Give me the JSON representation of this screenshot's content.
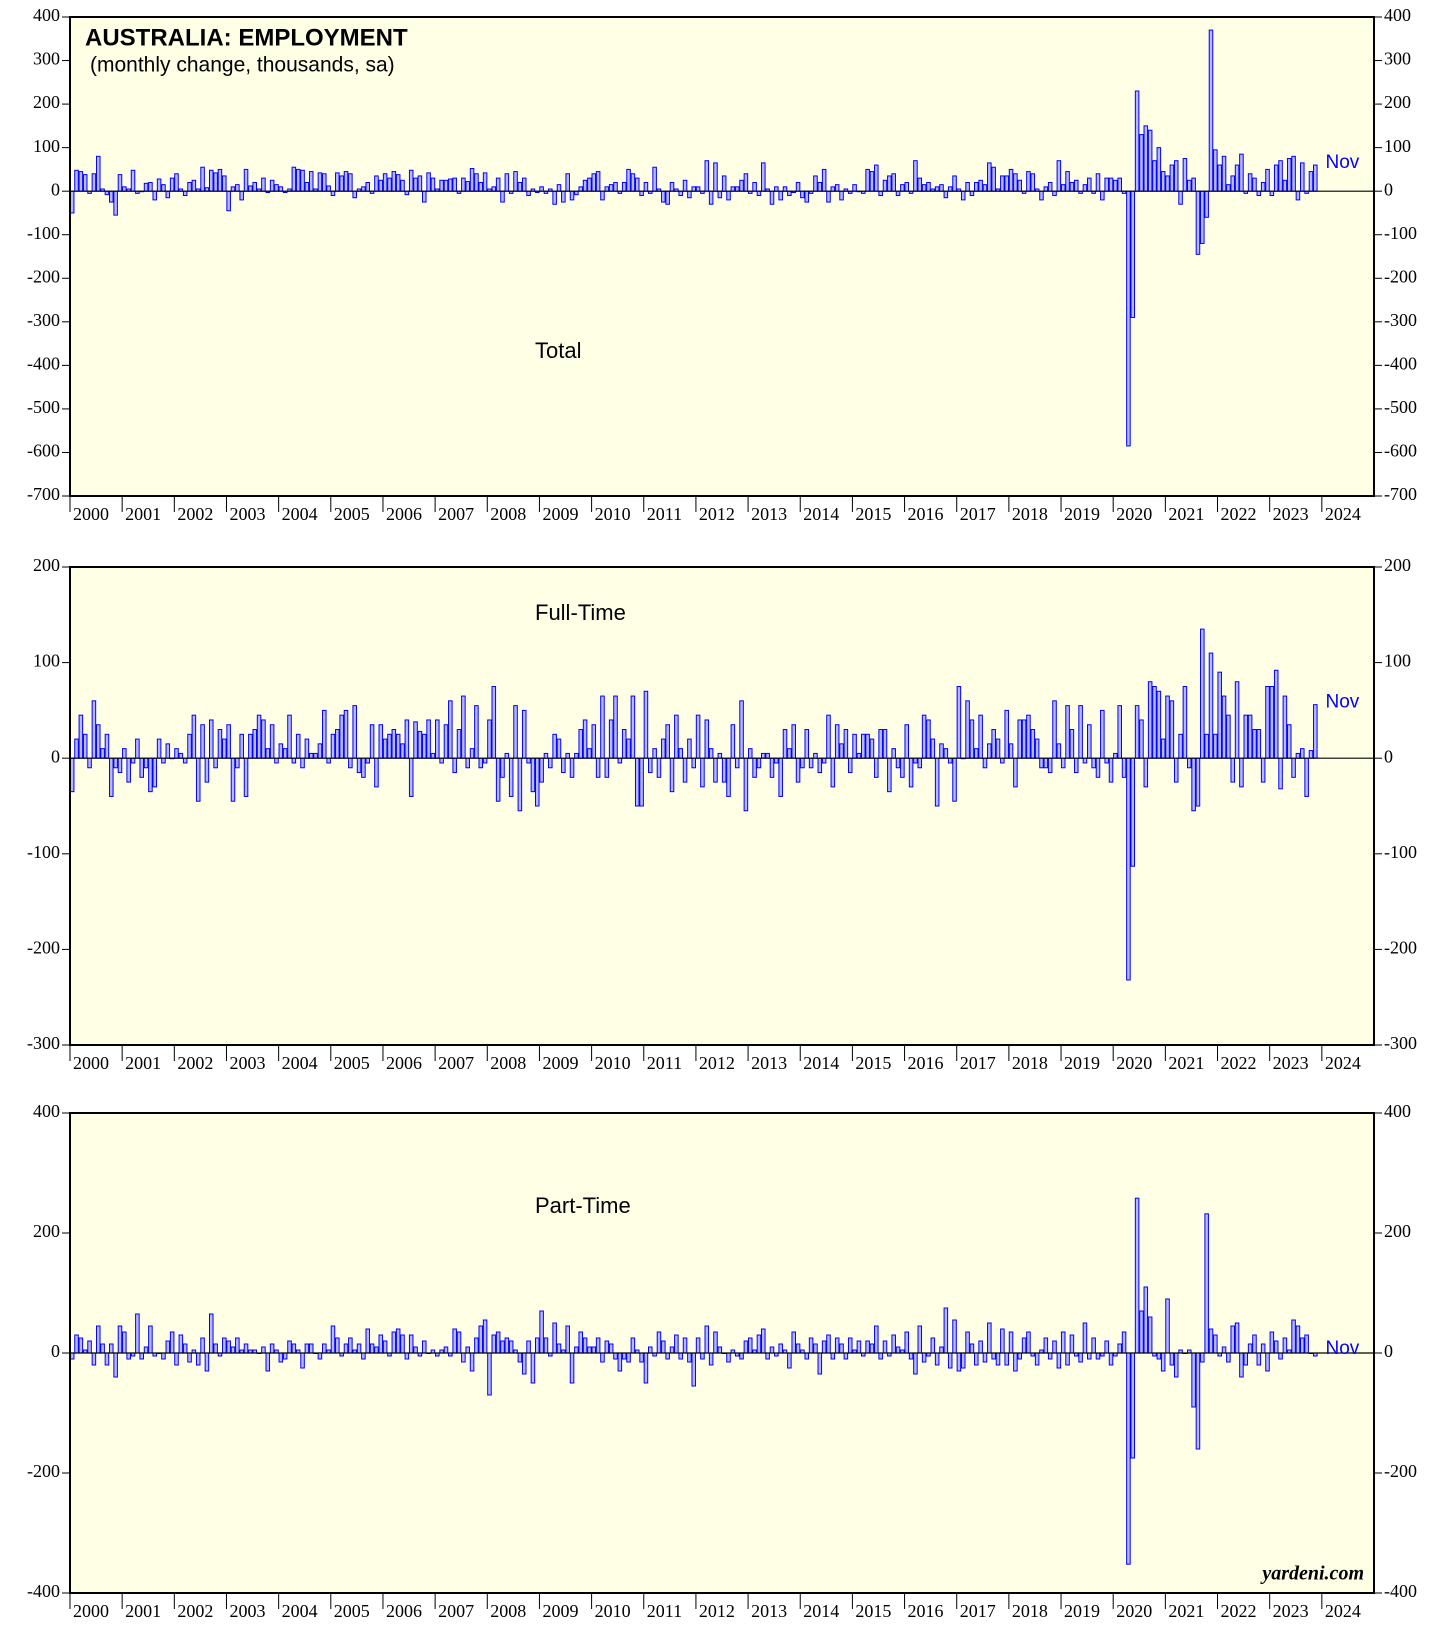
{
  "chart_data": [
    {
      "type": "bar",
      "title": "AUSTRALIA: EMPLOYMENT",
      "subtitle": "(monthly change, thousands, sa)",
      "label": "Total",
      "annotation": "Nov",
      "color": "#b8b8ff",
      "edge_color": "#0000ff",
      "background": "#ffffe6",
      "xlim": [
        2000,
        2025
      ],
      "xticks": [
        2000,
        2001,
        2002,
        2003,
        2004,
        2005,
        2006,
        2007,
        2008,
        2009,
        2010,
        2011,
        2012,
        2013,
        2014,
        2015,
        2016,
        2017,
        2018,
        2019,
        2020,
        2021,
        2022,
        2023,
        2024
      ],
      "ylim": [
        -700,
        400
      ],
      "yticks": [
        -700,
        -600,
        -500,
        -400,
        -300,
        -200,
        -100,
        0,
        100,
        200,
        300,
        400
      ],
      "values": [
        -50,
        48,
        45,
        38,
        -5,
        40,
        80,
        5,
        -8,
        -25,
        -55,
        38,
        10,
        5,
        48,
        -5,
        0,
        18,
        20,
        -20,
        28,
        15,
        -15,
        30,
        40,
        5,
        -10,
        20,
        25,
        5,
        55,
        8,
        48,
        42,
        50,
        35,
        -45,
        10,
        15,
        -20,
        50,
        12,
        20,
        5,
        30,
        -3,
        25,
        15,
        10,
        -3,
        5,
        55,
        50,
        48,
        20,
        45,
        5,
        42,
        40,
        12,
        -10,
        42,
        35,
        45,
        40,
        -15,
        5,
        10,
        20,
        -5,
        35,
        25,
        40,
        30,
        45,
        38,
        25,
        -8,
        48,
        30,
        35,
        -25,
        42,
        30,
        5,
        25,
        25,
        28,
        30,
        -5,
        30,
        22,
        52,
        40,
        20,
        42,
        5,
        10,
        30,
        -25,
        40,
        -5,
        45,
        20,
        30,
        -10,
        5,
        -3,
        10,
        -5,
        5,
        -30,
        15,
        -25,
        40,
        -20,
        -8,
        10,
        25,
        30,
        40,
        45,
        -20,
        10,
        15,
        20,
        -5,
        20,
        50,
        40,
        30,
        -10,
        20,
        -5,
        55,
        5,
        -25,
        -30,
        20,
        5,
        -10,
        25,
        -15,
        10,
        10,
        -5,
        70,
        -30,
        65,
        -15,
        35,
        -20,
        10,
        10,
        25,
        40,
        -5,
        20,
        -10,
        65,
        5,
        -30,
        10,
        -20,
        10,
        -10,
        -3,
        20,
        -15,
        -25,
        -5,
        35,
        20,
        50,
        -25,
        10,
        15,
        -20,
        5,
        -5,
        15,
        0,
        -5,
        50,
        45,
        60,
        -10,
        25,
        35,
        40,
        -10,
        15,
        20,
        -5,
        70,
        30,
        15,
        20,
        5,
        10,
        15,
        -15,
        10,
        35,
        5,
        -20,
        20,
        -10,
        20,
        25,
        15,
        65,
        55,
        5,
        35,
        35,
        50,
        40,
        25,
        -5,
        45,
        40,
        5,
        -20,
        10,
        20,
        -10,
        70,
        15,
        45,
        20,
        25,
        -5,
        15,
        30,
        -5,
        40,
        -20,
        30,
        30,
        25,
        30,
        -5,
        -585,
        -290,
        230,
        130,
        150,
        140,
        70,
        100,
        45,
        35,
        60,
        70,
        -30,
        75,
        25,
        30,
        -145,
        -120,
        -60,
        370,
        95,
        60,
        80,
        15,
        35,
        60,
        85,
        -5,
        40,
        30,
        -10,
        20,
        50,
        -10,
        60,
        70,
        25,
        75,
        80,
        -20,
        65,
        -5,
        45,
        60
      ]
    },
    {
      "type": "bar",
      "label": "Full-Time",
      "annotation": "Nov",
      "color": "#b8b8ff",
      "edge_color": "#0000ff",
      "background": "#ffffe6",
      "xlim": [
        2000,
        2025
      ],
      "xticks": [
        2000,
        2001,
        2002,
        2003,
        2004,
        2005,
        2006,
        2007,
        2008,
        2009,
        2010,
        2011,
        2012,
        2013,
        2014,
        2015,
        2016,
        2017,
        2018,
        2019,
        2020,
        2021,
        2022,
        2023,
        2024
      ],
      "ylim": [
        -300,
        200
      ],
      "yticks": [
        -300,
        -200,
        -100,
        0,
        100,
        200
      ],
      "values": [
        -35,
        20,
        45,
        25,
        -10,
        60,
        35,
        10,
        25,
        -40,
        -10,
        -15,
        10,
        -25,
        -5,
        20,
        -20,
        -10,
        -35,
        -30,
        20,
        -5,
        15,
        0,
        10,
        5,
        -5,
        25,
        45,
        -45,
        35,
        -25,
        40,
        -10,
        30,
        20,
        35,
        -45,
        -10,
        25,
        -40,
        25,
        30,
        45,
        40,
        10,
        35,
        -5,
        15,
        10,
        45,
        -5,
        25,
        -10,
        20,
        5,
        5,
        15,
        50,
        -5,
        25,
        30,
        45,
        50,
        -10,
        55,
        -15,
        -20,
        -5,
        35,
        -30,
        35,
        20,
        25,
        30,
        25,
        15,
        40,
        -40,
        38,
        28,
        25,
        40,
        5,
        40,
        -5,
        35,
        60,
        -15,
        30,
        65,
        -10,
        10,
        55,
        -10,
        -5,
        40,
        75,
        -45,
        -20,
        5,
        -40,
        55,
        -55,
        50,
        -5,
        -35,
        -50,
        -25,
        5,
        -10,
        25,
        20,
        -15,
        5,
        -20,
        5,
        30,
        40,
        10,
        35,
        -20,
        65,
        -20,
        40,
        65,
        -5,
        30,
        20,
        65,
        -50,
        -50,
        70,
        -15,
        10,
        -20,
        20,
        35,
        -35,
        45,
        10,
        -25,
        20,
        -10,
        45,
        -30,
        40,
        10,
        -25,
        5,
        -25,
        -40,
        35,
        -10,
        60,
        -55,
        10,
        -20,
        -10,
        5,
        5,
        -20,
        -5,
        -40,
        30,
        10,
        35,
        -25,
        -10,
        30,
        -10,
        5,
        -15,
        -5,
        45,
        -30,
        35,
        15,
        30,
        -15,
        25,
        5,
        25,
        25,
        20,
        -20,
        30,
        30,
        -35,
        10,
        -10,
        -20,
        35,
        -30,
        -5,
        -10,
        45,
        40,
        20,
        -50,
        15,
        10,
        -5,
        -45,
        75,
        0,
        60,
        40,
        10,
        45,
        -10,
        15,
        30,
        20,
        -5,
        50,
        15,
        -30,
        40,
        40,
        45,
        30,
        20,
        -10,
        -10,
        -15,
        60,
        15,
        -10,
        55,
        30,
        -15,
        55,
        -5,
        35,
        -10,
        -20,
        50,
        -5,
        -25,
        5,
        55,
        -20,
        -232,
        -113,
        55,
        40,
        -30,
        80,
        75,
        70,
        20,
        65,
        60,
        -25,
        25,
        75,
        -10,
        -55,
        -50,
        135,
        25,
        110,
        25,
        90,
        65,
        45,
        -25,
        80,
        -30,
        45,
        45,
        30,
        30,
        -25,
        75,
        75,
        92,
        -32,
        65,
        35,
        -20,
        5,
        10,
        -40,
        8,
        56
      ]
    },
    {
      "type": "bar",
      "label": "Part-Time",
      "annotation": "Nov",
      "source": "yardeni.com",
      "color": "#b8b8ff",
      "edge_color": "#0000ff",
      "background": "#ffffe6",
      "xlim": [
        2000,
        2025
      ],
      "xticks": [
        2000,
        2001,
        2002,
        2003,
        2004,
        2005,
        2006,
        2007,
        2008,
        2009,
        2010,
        2011,
        2012,
        2013,
        2014,
        2015,
        2016,
        2017,
        2018,
        2019,
        2020,
        2021,
        2022,
        2023,
        2024
      ],
      "ylim": [
        -400,
        400
      ],
      "yticks": [
        -400,
        -200,
        0,
        200,
        400
      ],
      "values": [
        -10,
        30,
        25,
        5,
        20,
        -20,
        45,
        15,
        -20,
        15,
        -40,
        45,
        35,
        -10,
        -5,
        65,
        -10,
        10,
        45,
        -5,
        0,
        -10,
        20,
        35,
        -20,
        30,
        15,
        -15,
        5,
        -20,
        25,
        -30,
        65,
        15,
        -5,
        25,
        20,
        10,
        25,
        5,
        15,
        5,
        5,
        0,
        10,
        -30,
        15,
        5,
        -15,
        -10,
        20,
        15,
        5,
        -25,
        15,
        15,
        0,
        -10,
        15,
        5,
        45,
        25,
        -5,
        15,
        25,
        5,
        15,
        -10,
        40,
        15,
        10,
        30,
        20,
        -5,
        35,
        40,
        30,
        -10,
        30,
        10,
        -5,
        20,
        0,
        5,
        -5,
        5,
        10,
        -5,
        40,
        35,
        -15,
        10,
        -30,
        25,
        45,
        55,
        -70,
        30,
        35,
        20,
        25,
        20,
        5,
        -15,
        -35,
        20,
        -50,
        25,
        70,
        25,
        -5,
        50,
        15,
        5,
        45,
        -50,
        10,
        35,
        25,
        10,
        10,
        25,
        -15,
        20,
        15,
        -10,
        -30,
        -10,
        -15,
        25,
        5,
        -15,
        -50,
        10,
        -5,
        35,
        20,
        -10,
        10,
        30,
        -10,
        25,
        -15,
        -55,
        25,
        -10,
        45,
        -20,
        35,
        10,
        0,
        -15,
        5,
        -5,
        -10,
        20,
        25,
        5,
        30,
        40,
        -10,
        10,
        -5,
        15,
        5,
        -25,
        35,
        15,
        5,
        -10,
        25,
        15,
        -35,
        20,
        30,
        -10,
        25,
        15,
        -10,
        25,
        5,
        20,
        -5,
        20,
        15,
        45,
        -10,
        20,
        -5,
        30,
        10,
        5,
        35,
        -10,
        -35,
        45,
        -15,
        -5,
        25,
        -20,
        10,
        75,
        -25,
        55,
        -30,
        -25,
        35,
        15,
        -20,
        20,
        -15,
        50,
        -10,
        -20,
        40,
        -20,
        35,
        -30,
        -10,
        25,
        35,
        -5,
        -20,
        5,
        25,
        -10,
        20,
        -25,
        35,
        -20,
        30,
        -5,
        -15,
        50,
        -10,
        25,
        -10,
        -5,
        20,
        -20,
        -5,
        15,
        35,
        -352,
        -175,
        258,
        70,
        110,
        60,
        -5,
        -10,
        -30,
        90,
        -20,
        -40,
        5,
        0,
        5,
        -90,
        -160,
        -15,
        232,
        40,
        30,
        -5,
        10,
        -15,
        45,
        50,
        -40,
        -20,
        15,
        30,
        -20,
        15,
        -30,
        35,
        20,
        -10,
        25,
        5,
        55,
        45,
        25,
        30,
        0,
        -5
      ]
    }
  ]
}
